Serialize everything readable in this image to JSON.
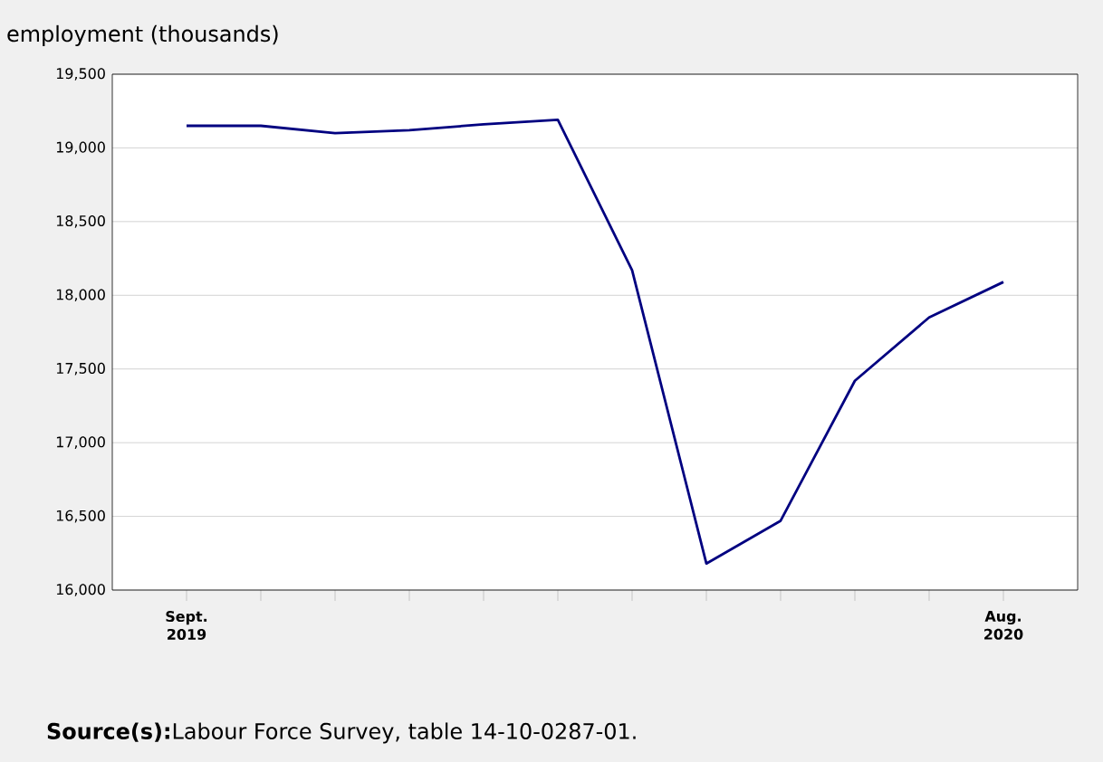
{
  "chart_data": {
    "type": "line",
    "ylabel": "employment (thousands)",
    "categories": [
      "Sept. 2019",
      null,
      null,
      null,
      null,
      null,
      null,
      null,
      null,
      null,
      null,
      "Aug. 2020"
    ],
    "series": [
      {
        "color": "#000080",
        "values": [
          19150,
          19150,
          19100,
          19120,
          19160,
          19190,
          18170,
          16180,
          16470,
          17420,
          17850,
          18090
        ]
      }
    ],
    "ylim": [
      16000,
      19500
    ],
    "yticks": [
      {
        "value": 16000,
        "label": "16,000"
      },
      {
        "value": 16500,
        "label": "16,500"
      },
      {
        "value": 17000,
        "label": "17,000"
      },
      {
        "value": 17500,
        "label": "17,500"
      },
      {
        "value": 18000,
        "label": "18,000"
      },
      {
        "value": 18500,
        "label": "18,500"
      },
      {
        "value": 19000,
        "label": "19,000"
      },
      {
        "value": 19500,
        "label": "19,500"
      }
    ],
    "grid": "y",
    "marker": "none",
    "line_style": "solid",
    "annotations": [
      "**Source(s):**Labour Force Survey, table 14-10-0287-01."
    ]
  }
}
